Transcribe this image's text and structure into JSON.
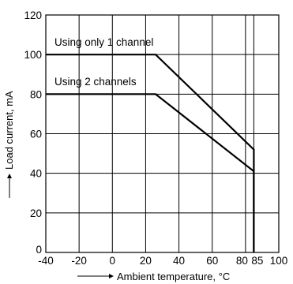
{
  "chart_data": {
    "type": "line",
    "title": "",
    "xlabel": "Ambient temperature, °C",
    "ylabel": "Load current, mA",
    "xlim": [
      -40,
      100
    ],
    "ylim": [
      0,
      120
    ],
    "grid": true,
    "x_ticks": [
      -40,
      -20,
      0,
      20,
      40,
      60,
      80,
      85,
      100
    ],
    "y_ticks": [
      0,
      20,
      40,
      60,
      80,
      100,
      120
    ],
    "x_tick_labels": [
      "-40",
      "-20",
      "0",
      "20",
      "40",
      "60",
      "80",
      "85",
      "100"
    ],
    "y_tick_labels": [
      "0",
      "20",
      "40",
      "60",
      "80",
      "100",
      "120"
    ],
    "series": [
      {
        "name": "Using only 1 channel",
        "points": [
          [
            -40,
            100
          ],
          [
            26,
            100
          ],
          [
            85,
            52
          ],
          [
            85,
            0
          ]
        ]
      },
      {
        "name": "Using 2 channels",
        "points": [
          [
            -40,
            80
          ],
          [
            26,
            80
          ],
          [
            85,
            41
          ],
          [
            85,
            0
          ]
        ]
      }
    ]
  }
}
